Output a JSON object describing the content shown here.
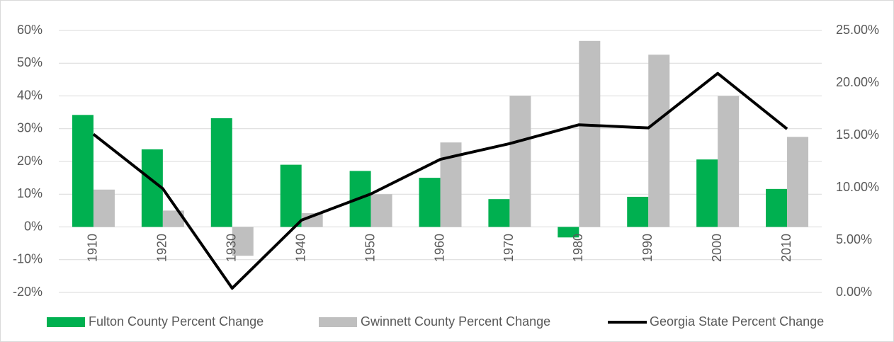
{
  "chart_data": {
    "type": "bar",
    "categories": [
      "1910",
      "1920",
      "1930",
      "1940",
      "1950",
      "1960",
      "1970",
      "1980",
      "1990",
      "2000",
      "2010"
    ],
    "series": [
      {
        "name": "Fulton County Percent Change",
        "color": "#00b050",
        "values": [
          34.2,
          23.7,
          33.2,
          19,
          17.1,
          15,
          8.5,
          -3.2,
          9.2,
          20.6,
          11.6
        ]
      },
      {
        "name": "Gwinnett County Percent Change",
        "color": "#bfbfbf",
        "values": [
          11.4,
          5,
          -8.8,
          4.2,
          10,
          25.8,
          40.1,
          56.8,
          52.6,
          40,
          27.5
        ]
      },
      {
        "name": "Georgia State Percent Change",
        "color": "#000000",
        "type": "line",
        "axis": "y2",
        "values": [
          15.1,
          9.9,
          0.4,
          6.9,
          9.4,
          12.7,
          14.2,
          16,
          15.7,
          20.9,
          15.6
        ]
      }
    ],
    "ylim": [
      -20,
      60
    ],
    "yticks": [
      {
        "value": -20,
        "label": "-20%"
      },
      {
        "value": -10,
        "label": "-10%"
      },
      {
        "value": 0,
        "label": "0%"
      },
      {
        "value": 10,
        "label": "10%"
      },
      {
        "value": 20,
        "label": "20%"
      },
      {
        "value": 30,
        "label": "30%"
      },
      {
        "value": 40,
        "label": "40%"
      },
      {
        "value": 50,
        "label": "50%"
      },
      {
        "value": 60,
        "label": "60%"
      }
    ],
    "y2lim": [
      0,
      25
    ],
    "y2ticks": [
      {
        "value": 0,
        "label": "0.00%"
      },
      {
        "value": 5,
        "label": "5.00%"
      },
      {
        "value": 10,
        "label": "10.00%"
      },
      {
        "value": 15,
        "label": "15.00%"
      },
      {
        "value": 20,
        "label": "20.00%"
      },
      {
        "value": 25,
        "label": "25.00%"
      }
    ],
    "grid": true,
    "legend": "bottom"
  }
}
